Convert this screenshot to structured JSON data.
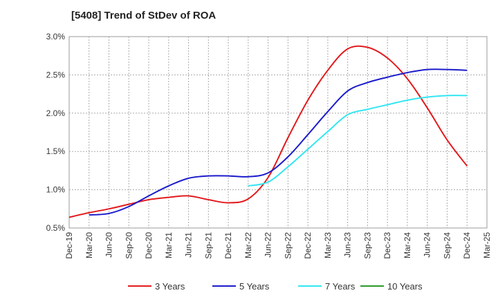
{
  "chart_data": {
    "type": "line",
    "title": "[5408]  Trend of StDev of ROA",
    "xlabel": "",
    "ylabel": "",
    "x": [
      "Dec-19",
      "Mar-20",
      "Jun-20",
      "Sep-20",
      "Dec-20",
      "Mar-21",
      "Jun-21",
      "Sep-21",
      "Dec-21",
      "Mar-22",
      "Jun-22",
      "Sep-22",
      "Dec-22",
      "Mar-23",
      "Jun-23",
      "Sep-23",
      "Dec-23",
      "Mar-24",
      "Jun-24",
      "Sep-24",
      "Dec-24",
      "Mar-25"
    ],
    "ylim": [
      0.5,
      3.0
    ],
    "yticks": [
      "0.5%",
      "1.0%",
      "1.5%",
      "2.0%",
      "2.5%",
      "3.0%"
    ],
    "y_unit": "%",
    "grid": true,
    "legend_position": "bottom",
    "series": [
      {
        "name": "3 Years",
        "color": "#e31a1c",
        "values": [
          0.64,
          0.7,
          0.75,
          0.81,
          0.87,
          0.9,
          0.92,
          0.87,
          0.83,
          0.88,
          1.16,
          1.68,
          2.17,
          2.56,
          2.84,
          2.86,
          2.72,
          2.45,
          2.07,
          1.65,
          1.31,
          null
        ]
      },
      {
        "name": "5 Years",
        "color": "#1b1bcc",
        "values": [
          null,
          0.67,
          0.69,
          0.78,
          0.92,
          1.05,
          1.15,
          1.18,
          1.18,
          1.17,
          1.22,
          1.43,
          1.72,
          2.02,
          2.29,
          2.4,
          2.47,
          2.53,
          2.57,
          2.57,
          2.56,
          null
        ]
      },
      {
        "name": "7 Years",
        "color": "#33e6f2",
        "values": [
          null,
          null,
          null,
          null,
          null,
          null,
          null,
          null,
          null,
          1.05,
          1.1,
          1.3,
          1.53,
          1.76,
          1.98,
          2.05,
          2.11,
          2.17,
          2.21,
          2.23,
          2.23,
          null
        ]
      },
      {
        "name": "10 Years",
        "color": "#2a9a2a",
        "values": [
          null,
          null,
          null,
          null,
          null,
          null,
          null,
          null,
          null,
          null,
          null,
          null,
          null,
          null,
          null,
          null,
          null,
          null,
          null,
          null,
          null,
          null
        ]
      }
    ]
  }
}
